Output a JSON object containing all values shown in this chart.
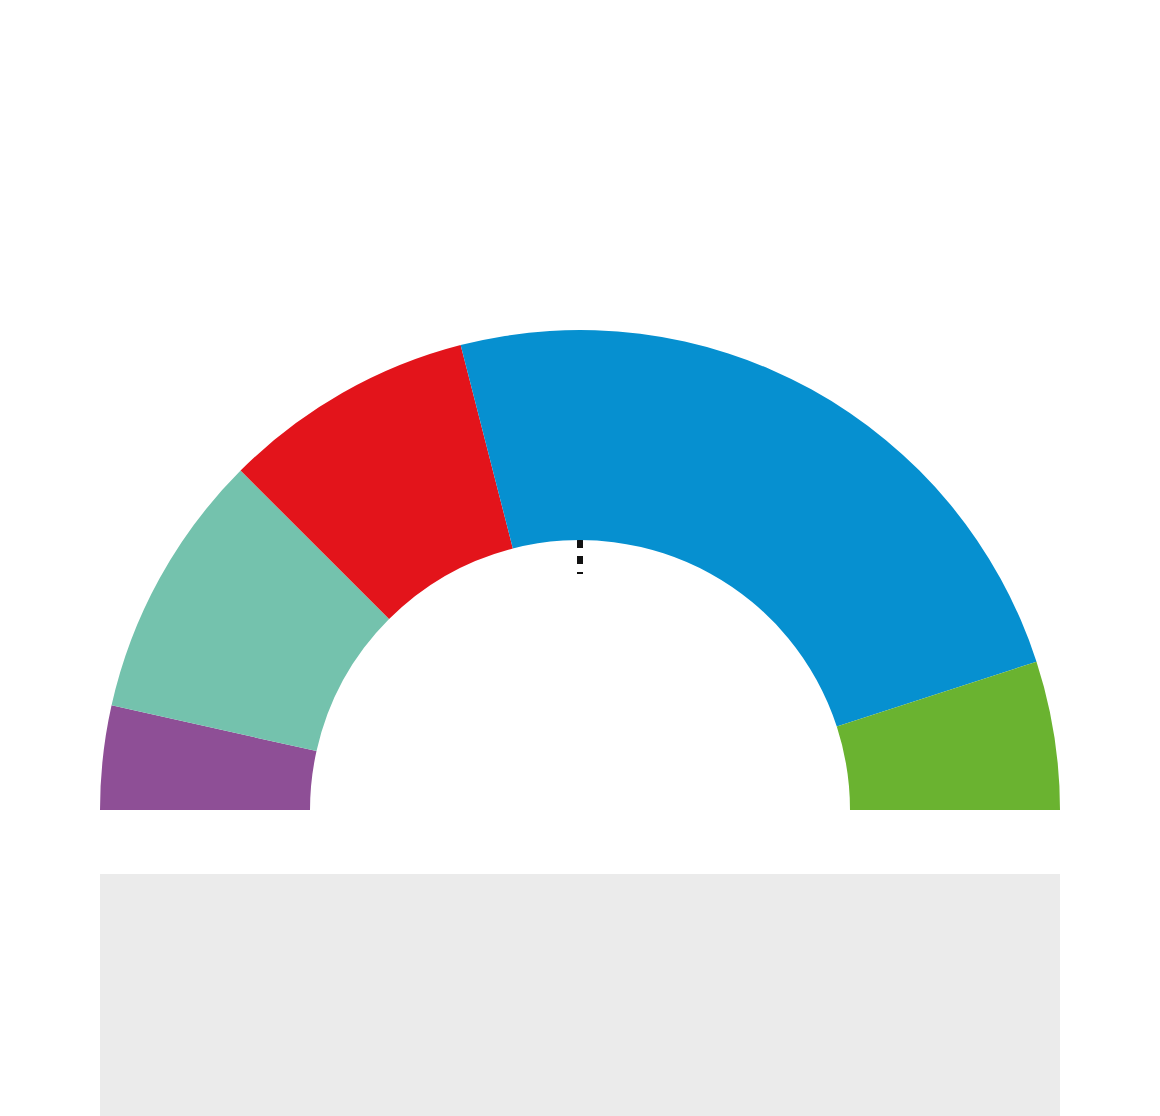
{
  "chart_data": {
    "type": "donut",
    "categories": [
      null,
      null,
      null,
      null,
      null
    ],
    "values": [
      7,
      18,
      17,
      48,
      10
    ],
    "colors": [
      "#8e4f96",
      "#74c2ad",
      "#e3141b",
      "#0690d0",
      "#6ab330"
    ]
  }
}
